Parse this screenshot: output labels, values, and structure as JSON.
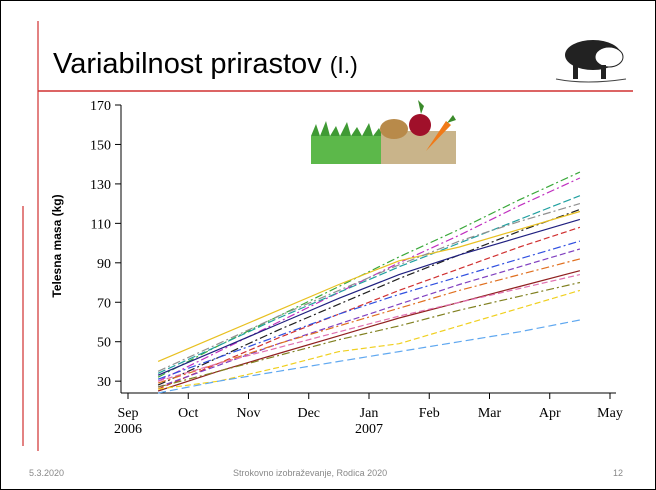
{
  "slide": {
    "title": {
      "main": "Variabilnost prirastov",
      "suffix": "(I.)"
    },
    "footer": {
      "date": "5.3.2020",
      "center": "Strokovno izobraževanje, Rodica 2020",
      "page": "12"
    }
  },
  "chart_data": {
    "type": "line",
    "ylabel": "Telesna masa (kg)",
    "x": [
      "2006-09",
      "2006-10",
      "2006-11",
      "2006-12",
      "2007-01",
      "2007-02",
      "2007-03",
      "2007-04"
    ],
    "xticks": [
      {
        "value": "2006-09",
        "label": "Sep\n2006"
      },
      {
        "value": "2006-10",
        "label": "Oct"
      },
      {
        "value": "2006-11",
        "label": "Nov"
      },
      {
        "value": "2006-12",
        "label": "Dec"
      },
      {
        "value": "2007-01",
        "label": "Jan\n2007"
      },
      {
        "value": "2007-02",
        "label": "Feb"
      },
      {
        "value": "2007-03",
        "label": "Mar"
      },
      {
        "value": "2007-04",
        "label": "Apr"
      },
      {
        "value": "2007-05",
        "label": "May"
      }
    ],
    "ylim": [
      24,
      170
    ],
    "yticks": [
      30,
      50,
      70,
      90,
      110,
      130,
      150,
      170
    ],
    "series": [
      {
        "color": "#3aa83a",
        "dash": "8 3 2 3",
        "values": [
          32,
          48,
          63,
          78,
          93,
          107,
          122,
          136
        ]
      },
      {
        "color": "#c030c0",
        "dash": "8 3 2 3",
        "values": [
          30,
          45,
          60,
          75,
          90,
          104,
          119,
          133
        ]
      },
      {
        "color": "#20a0a0",
        "dash": "8 3",
        "values": [
          34,
          48,
          62,
          75,
          88,
          100,
          112,
          124
        ]
      },
      {
        "color": "#202020",
        "dash": "8 3 2 3",
        "values": [
          28,
          42,
          56,
          69,
          82,
          94,
          106,
          117
        ]
      },
      {
        "color": "#e8c020",
        "dash": "none",
        "values": [
          40,
          53,
          66,
          79,
          91,
          98,
          107,
          116
        ]
      },
      {
        "color": "#202080",
        "dash": "none",
        "values": [
          33,
          46,
          59,
          72,
          84,
          94,
          103,
          112
        ]
      },
      {
        "color": "#d03030",
        "dash": "6 3",
        "values": [
          26,
          39,
          52,
          64,
          76,
          87,
          98,
          108
        ]
      },
      {
        "color": "#3050e0",
        "dash": "8 3 2 3",
        "values": [
          31,
          42,
          53,
          64,
          74,
          83,
          92,
          101
        ]
      },
      {
        "color": "#8040c0",
        "dash": "6 3",
        "values": [
          27,
          38,
          49,
          59,
          69,
          79,
          88,
          97
        ]
      },
      {
        "color": "#e07020",
        "dash": "8 3 2 3",
        "values": [
          29,
          39,
          49,
          58,
          67,
          76,
          84,
          92
        ]
      },
      {
        "color": "#902020",
        "dash": "none",
        "values": [
          25,
          35,
          44,
          53,
          62,
          70,
          78,
          86
        ]
      },
      {
        "color": "#e070b0",
        "dash": "6 3",
        "values": [
          30,
          39,
          47,
          55,
          63,
          70,
          77,
          84
        ]
      },
      {
        "color": "#808020",
        "dash": "8 3 2 3",
        "values": [
          27,
          35,
          43,
          51,
          58,
          66,
          73,
          80
        ]
      },
      {
        "color": "#f0d020",
        "dash": "6 3",
        "values": [
          26,
          30,
          37,
          45,
          49,
          58,
          67,
          76
        ]
      },
      {
        "color": "#60a8f0",
        "dash": "8 4",
        "values": [
          24,
          30,
          35,
          40,
          45,
          50,
          55,
          61
        ]
      },
      {
        "color": "#909090",
        "dash": "8 3 2 3",
        "values": [
          35,
          49,
          63,
          76,
          89,
          101,
          111,
          120
        ]
      }
    ]
  }
}
